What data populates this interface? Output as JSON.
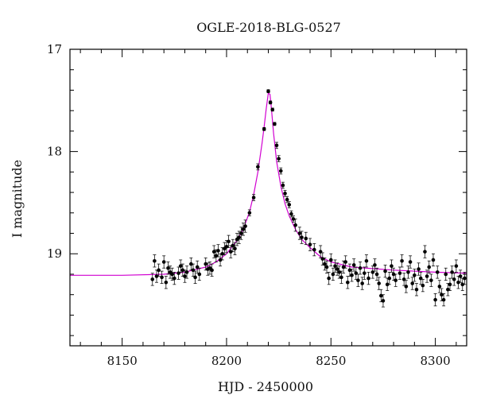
{
  "chart_data": {
    "type": "scatter",
    "title": "OGLE-2018-BLG-0527",
    "xlabel": "HJD - 2450000",
    "ylabel": "I magnitude",
    "xlim": [
      8125,
      8315
    ],
    "ylim": [
      19.9,
      17.0
    ],
    "y_inverted": true,
    "x_ticks": [
      8150,
      8200,
      8250,
      8300
    ],
    "x_tick_labels": [
      "8150",
      "8200",
      "8250",
      "8300"
    ],
    "y_ticks": [
      17,
      18,
      19
    ],
    "y_tick_labels": [
      "17",
      "18",
      "19"
    ],
    "grid": false,
    "colors": {
      "model": "#d100d1",
      "points": "#000000"
    },
    "model": {
      "name": "",
      "x": [
        8125,
        8150,
        8170,
        8180,
        8190,
        8195,
        8200,
        8205,
        8208,
        8211,
        8213,
        8215,
        8217,
        8218,
        8219,
        8220,
        8220.8,
        8221.5,
        8222.5,
        8224,
        8226,
        8228,
        8230,
        8233,
        8236,
        8240,
        8245,
        8250,
        8260,
        8280,
        8300,
        8315
      ],
      "y": [
        19.21,
        19.21,
        19.2,
        19.18,
        19.13,
        19.08,
        19.0,
        18.87,
        18.76,
        18.59,
        18.42,
        18.2,
        17.92,
        17.76,
        17.58,
        17.43,
        17.44,
        17.58,
        17.82,
        18.1,
        18.34,
        18.51,
        18.63,
        18.76,
        18.86,
        18.94,
        19.03,
        19.08,
        19.13,
        19.16,
        19.18,
        19.19
      ]
    },
    "series": [
      {
        "name": "",
        "x": [
          8164.5,
          8165.5,
          8166.5,
          8167.5,
          8169,
          8170,
          8171,
          8172,
          8173,
          8174,
          8175,
          8177,
          8178,
          8179,
          8180,
          8181,
          8183,
          8184,
          8185,
          8186,
          8187,
          8190,
          8191,
          8192,
          8193,
          8194,
          8195,
          8196,
          8197,
          8198,
          8199,
          8200,
          8201,
          8202,
          8203,
          8204,
          8205,
          8206,
          8207,
          8208,
          8209,
          8211,
          8213,
          8215,
          8218,
          8220,
          8221,
          8222,
          8223,
          8224,
          8225,
          8226,
          8227,
          8228,
          8229,
          8230,
          8231,
          8232,
          8233,
          8235,
          8236,
          8238,
          8240,
          8242,
          8245,
          8246,
          8247,
          8248,
          8249,
          8250,
          8251,
          8252,
          8253,
          8254,
          8255,
          8256,
          8257,
          8258,
          8259,
          8260,
          8261,
          8262,
          8263,
          8264,
          8265,
          8266,
          8267,
          8268,
          8270,
          8271,
          8272,
          8273,
          8274,
          8275,
          8276,
          8277,
          8278,
          8279,
          8280,
          8281,
          8283,
          8284,
          8285,
          8286,
          8287,
          8288,
          8289,
          8290,
          8291,
          8292,
          8293,
          8294,
          8295,
          8296,
          8297,
          8298,
          8299,
          8300,
          8301,
          8302,
          8303,
          8304,
          8305,
          8306,
          8307,
          8308,
          8309,
          8310,
          8311,
          8312,
          8313,
          8314
        ],
        "y": [
          19.25,
          19.07,
          19.22,
          19.16,
          19.23,
          19.08,
          19.28,
          19.14,
          19.18,
          19.2,
          19.24,
          19.19,
          19.12,
          19.16,
          19.22,
          19.18,
          19.1,
          19.16,
          19.23,
          19.13,
          19.2,
          19.1,
          19.15,
          19.14,
          19.16,
          18.98,
          19.02,
          18.97,
          19.06,
          19.0,
          18.95,
          18.93,
          18.88,
          18.98,
          18.92,
          18.95,
          18.86,
          18.84,
          18.8,
          18.76,
          18.73,
          18.6,
          18.45,
          18.15,
          17.78,
          17.41,
          17.52,
          17.59,
          17.73,
          17.94,
          18.07,
          18.19,
          18.33,
          18.41,
          18.47,
          18.52,
          18.61,
          18.66,
          18.72,
          18.8,
          18.84,
          18.85,
          18.91,
          18.96,
          18.98,
          19.05,
          19.1,
          19.13,
          19.24,
          19.06,
          19.2,
          19.12,
          19.15,
          19.18,
          19.23,
          19.13,
          19.08,
          19.28,
          19.16,
          19.21,
          19.11,
          19.19,
          19.26,
          19.14,
          19.29,
          19.19,
          19.07,
          19.24,
          19.18,
          19.11,
          19.2,
          19.29,
          19.41,
          19.46,
          19.17,
          19.3,
          19.24,
          19.12,
          19.2,
          19.26,
          19.19,
          19.07,
          19.25,
          19.32,
          19.18,
          19.08,
          19.29,
          19.21,
          19.35,
          19.15,
          19.24,
          19.31,
          18.98,
          19.22,
          19.13,
          19.26,
          19.06,
          19.45,
          19.18,
          19.32,
          19.4,
          19.45,
          19.2,
          19.35,
          19.3,
          19.18,
          19.25,
          19.12,
          19.28,
          19.22,
          19.3,
          19.24
        ]
      }
    ]
  }
}
